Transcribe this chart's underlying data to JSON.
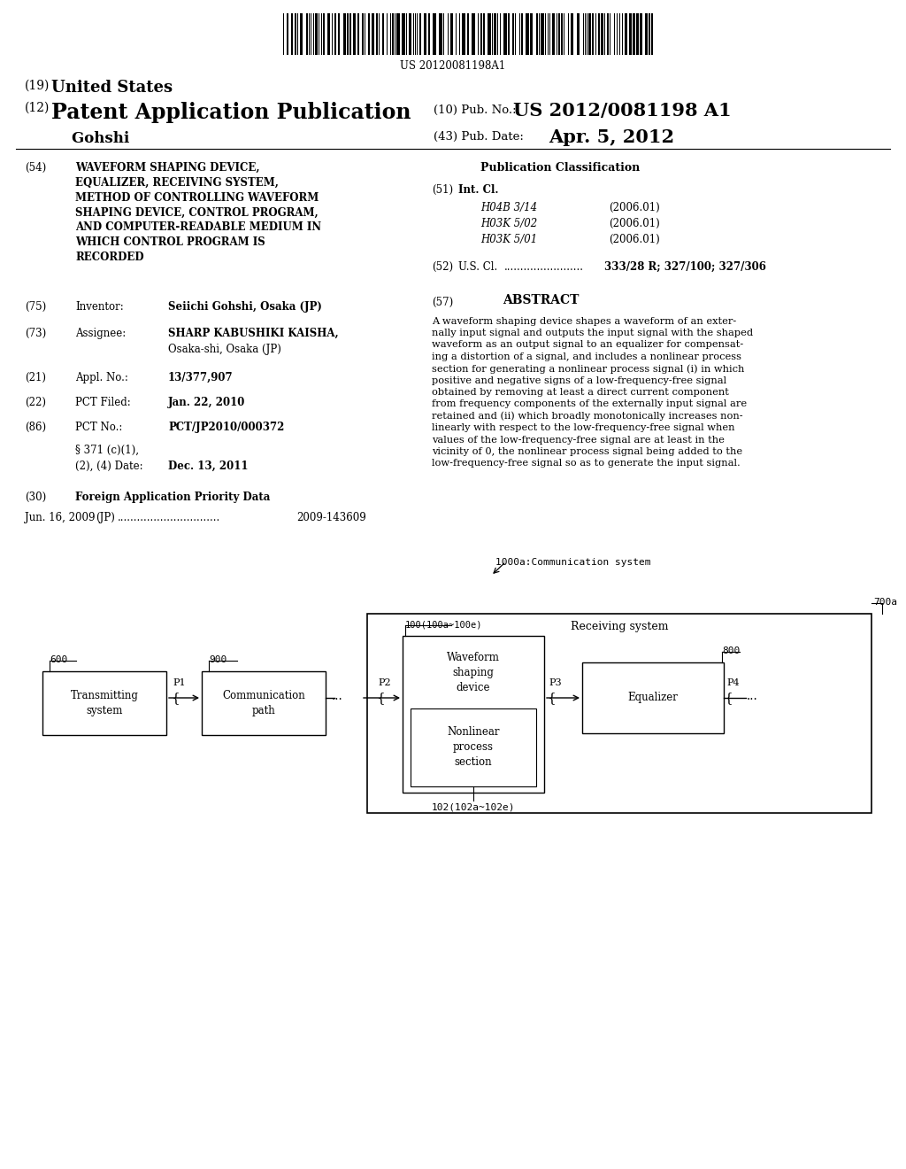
{
  "bg_color": "#ffffff",
  "barcode_text": "US 20120081198A1",
  "header_19": "(19)",
  "header_19b": "United States",
  "header_12": "(12)",
  "header_12b": "Patent Application Publication",
  "header_10_label": "(10) Pub. No.:",
  "header_10_value": "US 2012/0081198 A1",
  "header_author_label": "    Gohshi",
  "header_43_label": "(43) Pub. Date:",
  "header_43_value": "Apr. 5, 2012",
  "field54_num": "(54)",
  "field54_text": "WAVEFORM SHAPING DEVICE,\nEQUALIZER, RECEIVING SYSTEM,\nMETHOD OF CONTROLLING WAVEFORM\nSHAPING DEVICE, CONTROL PROGRAM,\nAND COMPUTER-READABLE MEDIUM IN\nWHICH CONTROL PROGRAM IS\nRECORDED",
  "pub_class_title": "Publication Classification",
  "field51_num": "(51)",
  "field51_label": "Int. Cl.",
  "class1_code": "H04B 3/14",
  "class1_year": "(2006.01)",
  "class2_code": "H03K 5/02",
  "class2_year": "(2006.01)",
  "class3_code": "H03K 5/01",
  "class3_year": "(2006.01)",
  "field52_num": "(52)",
  "field52_label": "U.S. Cl.",
  "field52_dots": "........................",
  "field52_value": "333/28 R; 327/100; 327/306",
  "field75_num": "(75)",
  "field75_label": "Inventor:",
  "field75_value": "Seiichi Gohshi, Osaka (JP)",
  "field73_num": "(73)",
  "field73_label": "Assignee:",
  "field73_value_1": "SHARP KABUSHIKI KAISHA,",
  "field73_value_2": "Osaka-shi, Osaka (JP)",
  "field21_num": "(21)",
  "field21_label": "Appl. No.:",
  "field21_value": "13/377,907",
  "field22_num": "(22)",
  "field22_label": "PCT Filed:",
  "field22_value": "Jan. 22, 2010",
  "field86_num": "(86)",
  "field86_label": "PCT No.:",
  "field86_value": "PCT/JP2010/000372",
  "field86b_label": "§ 371 (c)(1),",
  "field86c_label": "(2), (4) Date:",
  "field86c_value": "Dec. 13, 2011",
  "field30_num": "(30)",
  "field30_label": "Foreign Application Priority Data",
  "field30_date": "Jun. 16, 2009",
  "field30_country": "(JP)",
  "field30_dots": "...............................",
  "field30_appno": "2009-143609",
  "field57_num": "(57)",
  "field57_label": "ABSTRACT",
  "abstract_text": "A waveform shaping device shapes a waveform of an exter-\nnally input signal and outputs the input signal with the shaped\nwaveform as an output signal to an equalizer for compensat-\ning a distortion of a signal, and includes a nonlinear process\nsection for generating a nonlinear process signal (i) in which\npositive and negative signs of a low-frequency-free signal\nobtained by removing at least a direct current component\nfrom frequency components of the externally input signal are\nretained and (ii) which broadly monotonically increases non-\nlinearly with respect to the low-frequency-free signal when\nvalues of the low-frequency-free signal are at least in the\nvicinity of 0, the nonlinear process signal being added to the\nlow-frequency-free signal so as to generate the input signal.",
  "diag_comm_label": "1000a:Communication system",
  "diag_recv_label": "Receiving system",
  "diag_recv_ref": "700a",
  "diag_tx_label": "Transmitting\nsystem",
  "diag_tx_ref": "600",
  "diag_path_label": "Communication\npath",
  "diag_path_ref": "900",
  "diag_wsd_label": "Waveform\nshaping\ndevice",
  "diag_wsd_ref": "100(100a~100e)",
  "diag_eq_label": "Equalizer",
  "diag_eq_ref": "800",
  "diag_nps_label": "Nonlinear\nprocess\nsection",
  "diag_nps_ref": "102(102a~102e)",
  "diag_P1": "P1",
  "diag_P2": "P2",
  "diag_P3": "P3",
  "diag_P4": "P4"
}
